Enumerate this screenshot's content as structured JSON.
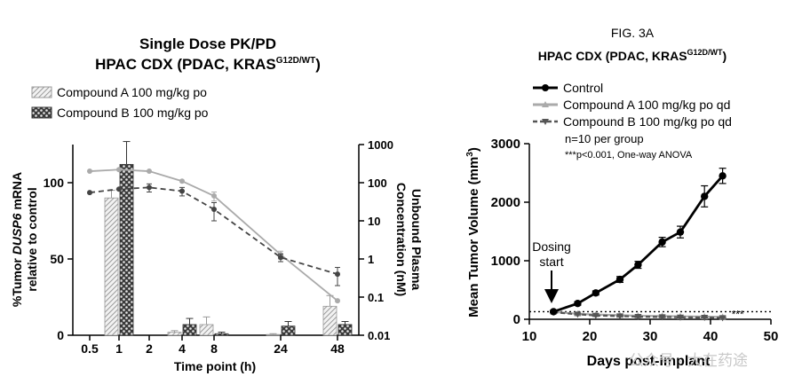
{
  "figure_label": "FIG. 3A",
  "watermark": "公众号 · 大在药途",
  "chart_data": [
    {
      "type": "bar",
      "title": "Single Dose PK/PD",
      "subtitle": "HPAC CDX (PDAC, KRAS",
      "subtitle_sup": "G12D/WT",
      "subtitle_end": ")",
      "xlabel": "Time point (h)",
      "ylabel_line1_pre": "%Tumor ",
      "ylabel_line1_em": "DUSP6",
      "ylabel_line1_post": " mRNA",
      "ylabel_line2": "relative to control",
      "y2label_line1": "Unbound Plasma",
      "y2label_line2": "Concentration (nM)",
      "x_tick_labels": [
        "0.5",
        "1",
        "2",
        "4",
        "8",
        "24",
        "48"
      ],
      "y_ticks": [
        "0",
        "50",
        "100"
      ],
      "ylim": [
        0,
        125
      ],
      "y2_ticks": [
        "0.01",
        "0.1",
        "1",
        "10",
        "100",
        "1000"
      ],
      "y2_log": true,
      "y2lim": [
        0.01,
        1000
      ],
      "grid": false,
      "legend_position": "top-left",
      "bar_series": [
        {
          "name": "Compound A 100 mg/kg po",
          "pattern": "hatch",
          "values": [
            null,
            90,
            null,
            2,
            7,
            0.5,
            19
          ],
          "errors": [
            null,
            5,
            null,
            1,
            5,
            0.5,
            7
          ]
        },
        {
          "name": "Compound B 100 mg/kg po",
          "pattern": "checker",
          "values": [
            null,
            112,
            null,
            7,
            1,
            6,
            7
          ],
          "errors": [
            null,
            15,
            null,
            4,
            1,
            3,
            2
          ]
        }
      ],
      "line_series": [
        {
          "name": "Compound A 100 mg/kg po",
          "style": "solid",
          "values": [
            200,
            220,
            200,
            110,
            45,
            1.3,
            0.08
          ],
          "errors": [
            null,
            null,
            null,
            null,
            12,
            0.3,
            null
          ]
        },
        {
          "name": "Compound B 100 mg/kg po",
          "style": "dashed",
          "values": [
            55,
            68,
            75,
            60,
            20,
            1.1,
            0.4
          ],
          "errors": [
            null,
            null,
            18,
            15,
            10,
            0.25,
            0.2
          ]
        }
      ]
    },
    {
      "type": "line",
      "title": "HPAC CDX (PDAC, KRAS",
      "title_sup": "G12D/WT",
      "title_end": ")",
      "xlabel": "Days post-implant",
      "ylabel": "Mean Tumor Volume (mm",
      "ylabel_sup": "3",
      "ylabel_end": ")",
      "xlim": [
        10,
        50
      ],
      "ylim": [
        0,
        3000
      ],
      "x_ticks": [
        "10",
        "20",
        "30",
        "40",
        "50"
      ],
      "y_ticks": [
        "0",
        "1000",
        "2000",
        "3000"
      ],
      "grid": false,
      "legend_position": "top-left",
      "notes": [
        "n=10 per group",
        "***p<0.001, One-way ANOVA"
      ],
      "annotation": {
        "line1": "Dosing",
        "line2": "start",
        "x": 14
      },
      "significance": "***",
      "reference_line_y": 130,
      "series": [
        {
          "name": "Control",
          "color": "#000000",
          "marker": "circle",
          "x": [
            14,
            18,
            21,
            25,
            28,
            32,
            35,
            39,
            42
          ],
          "y": [
            130,
            270,
            450,
            680,
            930,
            1320,
            1490,
            2100,
            2450
          ],
          "err": [
            20,
            30,
            35,
            50,
            60,
            80,
            100,
            180,
            130
          ]
        },
        {
          "name": "Compound A 100 mg/kg po qd",
          "color": "#aaaaaa",
          "marker": "triangle-up",
          "x": [
            14,
            18,
            21,
            25,
            28,
            32,
            35,
            39,
            42
          ],
          "y": [
            125,
            95,
            80,
            70,
            60,
            55,
            50,
            45,
            40
          ],
          "err": [
            10,
            10,
            10,
            10,
            10,
            10,
            10,
            10,
            10
          ]
        },
        {
          "name": "Compound B 100 mg/kg po qd",
          "color": "#555555",
          "marker": "triangle-down",
          "x": [
            14,
            18,
            21,
            25,
            28,
            32,
            35,
            39,
            42
          ],
          "y": [
            120,
            85,
            65,
            55,
            45,
            40,
            35,
            30,
            25
          ],
          "err": [
            10,
            10,
            10,
            10,
            10,
            10,
            10,
            10,
            10
          ]
        }
      ]
    }
  ]
}
